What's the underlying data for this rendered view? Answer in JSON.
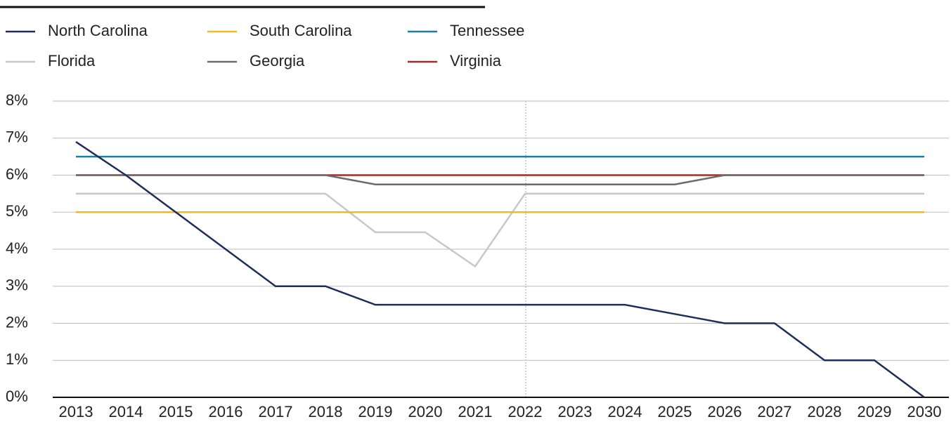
{
  "chart_data": {
    "type": "line",
    "categories": [
      "2013",
      "2014",
      "2015",
      "2016",
      "2017",
      "2018",
      "2019",
      "2020",
      "2021",
      "2022",
      "2023",
      "2024",
      "2025",
      "2026",
      "2027",
      "2028",
      "2029",
      "2030"
    ],
    "series": [
      {
        "name": "North Carolina",
        "color": "#1f2d5a",
        "values": [
          6.9,
          6.0,
          5.0,
          4.0,
          3.0,
          3.0,
          2.5,
          2.5,
          2.5,
          2.5,
          2.5,
          2.5,
          2.25,
          2.0,
          2.0,
          1.0,
          1.0,
          0
        ]
      },
      {
        "name": "South Carolina",
        "color": "#f2b81f",
        "values": [
          5,
          5,
          5,
          5,
          5,
          5,
          5,
          5,
          5,
          5,
          5,
          5,
          5,
          5,
          5,
          5,
          5,
          5
        ]
      },
      {
        "name": "Tennessee",
        "color": "#1a7fa6",
        "values": [
          6.5,
          6.5,
          6.5,
          6.5,
          6.5,
          6.5,
          6.5,
          6.5,
          6.5,
          6.5,
          6.5,
          6.5,
          6.5,
          6.5,
          6.5,
          6.5,
          6.5,
          6.5
        ]
      },
      {
        "name": "Florida",
        "color": "#c8c8c8",
        "values": [
          5.5,
          5.5,
          5.5,
          5.5,
          5.5,
          5.5,
          4.458,
          4.458,
          3.535,
          5.5,
          5.5,
          5.5,
          5.5,
          5.5,
          5.5,
          5.5,
          5.5,
          5.5
        ]
      },
      {
        "name": "Georgia",
        "color": "#6b6b6b",
        "values": [
          6,
          6,
          6,
          6,
          6,
          6,
          5.75,
          5.75,
          5.75,
          5.75,
          5.75,
          5.75,
          5.75,
          6,
          6,
          6,
          6,
          6
        ]
      },
      {
        "name": "Virginia",
        "color": "#a52a2a",
        "values": [
          6,
          6,
          6,
          6,
          6,
          6,
          6,
          6,
          6,
          6,
          6,
          6,
          6,
          6,
          6,
          6,
          6,
          6
        ]
      }
    ],
    "ylim": [
      0,
      8
    ],
    "yticks": [
      {
        "value": 0,
        "label": "0%"
      },
      {
        "value": 1,
        "label": "1%"
      },
      {
        "value": 2,
        "label": "2%"
      },
      {
        "value": 3,
        "label": "3%"
      },
      {
        "value": 4,
        "label": "4%"
      },
      {
        "value": 5,
        "label": "5%"
      },
      {
        "value": 6,
        "label": "6%"
      },
      {
        "value": 7,
        "label": "7%"
      },
      {
        "value": 8,
        "label": "8%"
      }
    ],
    "grid": true
  }
}
